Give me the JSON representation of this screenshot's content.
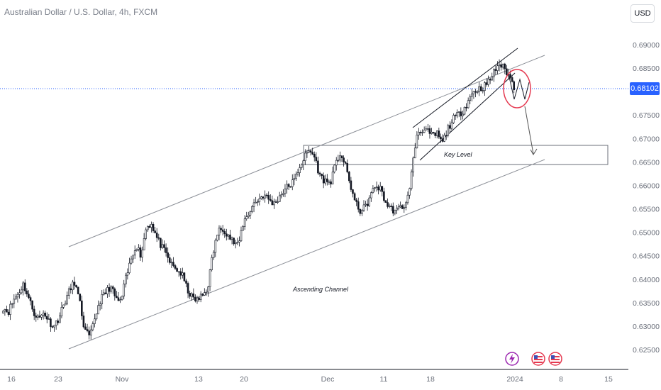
{
  "header": {
    "title": "Australian Dollar / U.S. Dollar, 4h, FXCM"
  },
  "toolbar": {
    "currency_label": "USD"
  },
  "current_price": "0.68102",
  "colors": {
    "candle": "#131722",
    "price_line": "#2962ff",
    "circle": "#e53950",
    "line": "#5d6068"
  },
  "chart_data": {
    "type": "candlestick",
    "symbol": "AUDUSD",
    "ylim": [
      0.6225,
      0.692
    ],
    "y_ticks": [
      "0.69000",
      "0.68500",
      "0.68000",
      "0.67500",
      "0.67000",
      "0.66500",
      "0.66000",
      "0.65500",
      "0.65000",
      "0.64500",
      "0.64000",
      "0.63500",
      "0.63000",
      "0.62500"
    ],
    "x_ticks": [
      "16",
      "23",
      "Nov",
      "13",
      "20",
      "Dec",
      "11",
      "18",
      "2024",
      "8",
      "15"
    ],
    "close_series": [
      0.634,
      0.633,
      0.6355,
      0.637,
      0.639,
      0.636,
      0.633,
      0.6315,
      0.633,
      0.631,
      0.63,
      0.632,
      0.635,
      0.6375,
      0.6395,
      0.635,
      0.629,
      0.6275,
      0.632,
      0.6355,
      0.637,
      0.6385,
      0.636,
      0.635,
      0.64,
      0.644,
      0.6475,
      0.645,
      0.651,
      0.652,
      0.649,
      0.647,
      0.645,
      0.643,
      0.642,
      0.641,
      0.638,
      0.636,
      0.6355,
      0.6365,
      0.638,
      0.645,
      0.65,
      0.651,
      0.6495,
      0.648,
      0.647,
      0.652,
      0.654,
      0.656,
      0.657,
      0.658,
      0.657,
      0.656,
      0.6575,
      0.659,
      0.66,
      0.661,
      0.664,
      0.666,
      0.6675,
      0.666,
      0.662,
      0.661,
      0.6605,
      0.664,
      0.667,
      0.664,
      0.66,
      0.656,
      0.6545,
      0.6555,
      0.658,
      0.66,
      0.659,
      0.656,
      0.655,
      0.6545,
      0.6555,
      0.656,
      0.663,
      0.671,
      0.672,
      0.6715,
      0.6705,
      0.671,
      0.669,
      0.672,
      0.674,
      0.675,
      0.676,
      0.678,
      0.68,
      0.6805,
      0.681,
      0.682,
      0.684,
      0.686,
      0.685,
      0.6835,
      0.681
    ],
    "annotations": [
      {
        "text": "Key Level"
      },
      {
        "text": "Ascending Channel"
      }
    ]
  }
}
